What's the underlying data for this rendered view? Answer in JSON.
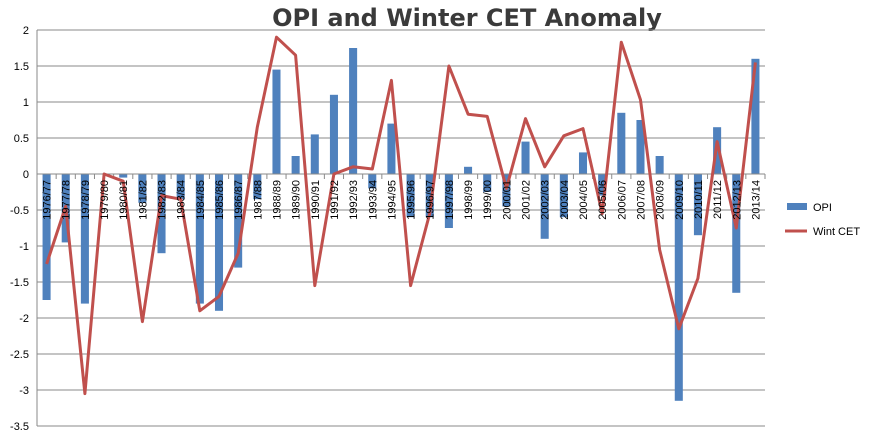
{
  "chart_data": {
    "type": "bar",
    "title": "OPI and Winter CET Anomaly",
    "xlabel": "",
    "ylabel": "",
    "ylim": [
      -3.5,
      2
    ],
    "yticks": [
      2,
      1.5,
      1,
      0.5,
      0,
      -0.5,
      -1,
      -1.5,
      -2,
      -2.5,
      -3,
      -3.5
    ],
    "grid": true,
    "legend_position": "right",
    "categories": [
      "1976/77",
      "1977/78",
      "1978/79",
      "1979/80",
      "1980/81",
      "1981/82",
      "1982/83",
      "1983/84",
      "1984/85",
      "1985/86",
      "1986/87",
      "1987/88",
      "1988/89",
      "1989/90",
      "1990/91",
      "1991/92",
      "1992/93",
      "1993/94",
      "1994/95",
      "1995/96",
      "1996/97",
      "1997/98",
      "1998/99",
      "1999/00",
      "2000/01",
      "2001/02",
      "2002/03",
      "2003/04",
      "2004/05",
      "2005/06",
      "2006/07",
      "2007/08",
      "2008/09",
      "2009/10",
      "2010/11",
      "2011/12",
      "2012/13",
      "2013/14"
    ],
    "series": [
      {
        "name": "OPI",
        "kind": "bar",
        "color": "#4f81bd",
        "values": [
          -1.75,
          -0.95,
          -1.8,
          0.0,
          -0.05,
          -0.4,
          -1.1,
          -0.35,
          -1.8,
          -1.9,
          -1.3,
          -0.35,
          1.45,
          0.25,
          0.55,
          1.1,
          1.75,
          -0.2,
          0.7,
          -0.6,
          -0.6,
          -0.75,
          0.1,
          -0.25,
          -0.45,
          0.45,
          -0.9,
          -0.6,
          0.3,
          -0.3,
          0.85,
          0.75,
          0.25,
          -3.15,
          -0.85,
          0.65,
          -1.65,
          1.6
        ]
      },
      {
        "name": "Wint CET",
        "kind": "line",
        "color": "#c0504d",
        "values": [
          -1.25,
          -0.45,
          -3.05,
          0.0,
          -0.1,
          -2.05,
          -0.3,
          -0.35,
          -1.9,
          -1.7,
          -1.1,
          0.65,
          1.9,
          1.65,
          -1.55,
          0.0,
          0.1,
          0.07,
          1.3,
          -1.55,
          -0.55,
          1.5,
          0.83,
          0.8,
          -0.2,
          0.77,
          0.1,
          0.53,
          0.63,
          -0.55,
          1.83,
          1.03,
          -1.05,
          -2.15,
          -1.45,
          0.45,
          -0.75,
          1.55
        ]
      }
    ]
  }
}
